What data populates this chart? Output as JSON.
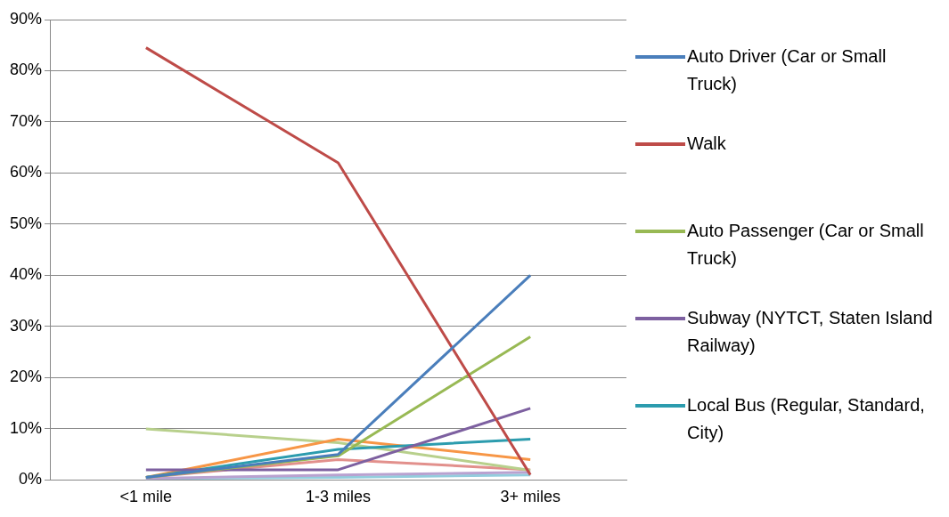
{
  "chart_data": {
    "type": "line",
    "categories": [
      "<1 mile",
      "1-3 miles",
      "3+ miles"
    ],
    "series": [
      {
        "name": "Auto Driver (Car or Small Truck)",
        "color": "#4a7ebb",
        "values": [
          0.5,
          5,
          40
        ]
      },
      {
        "name": "Walk",
        "color": "#be4b48",
        "values": [
          84.5,
          62,
          1
        ]
      },
      {
        "name": "Auto Passenger (Car or Small Truck)",
        "color": "#98b954",
        "values": [
          0.5,
          4.7,
          28
        ]
      },
      {
        "name": "Subway (NYTCT, Staten Island Railway)",
        "color": "#7d60a0",
        "values": [
          2,
          2,
          14
        ]
      },
      {
        "name": "Local Bus (Regular, Standard, City)",
        "color": "#2c9cae",
        "values": [
          0.5,
          6,
          8
        ]
      },
      {
        "color": "#f79646",
        "values": [
          0.5,
          8,
          4
        ]
      },
      {
        "color": "#b8d08c",
        "values": [
          10,
          7.3,
          1.9
        ]
      },
      {
        "color": "#e2908c",
        "values": [
          0.5,
          4,
          2
        ]
      },
      {
        "color": "#b9a2d0",
        "values": [
          0.3,
          1,
          1.5
        ]
      },
      {
        "color": "#93cddd",
        "values": [
          0.3,
          0.5,
          1
        ]
      }
    ],
    "ylim": [
      0,
      90
    ],
    "yticks": [
      {
        "value": 0,
        "label": "0%"
      },
      {
        "value": 10,
        "label": "10%"
      },
      {
        "value": 20,
        "label": "20%"
      },
      {
        "value": 30,
        "label": "30%"
      },
      {
        "value": 40,
        "label": "40%"
      },
      {
        "value": 50,
        "label": "50%"
      },
      {
        "value": 60,
        "label": "60%"
      },
      {
        "value": 70,
        "label": "70%"
      },
      {
        "value": 80,
        "label": "80%"
      },
      {
        "value": 90,
        "label": "90%"
      }
    ],
    "grid": "y",
    "legend": "right",
    "marker": "none",
    "line_style": "solid"
  }
}
